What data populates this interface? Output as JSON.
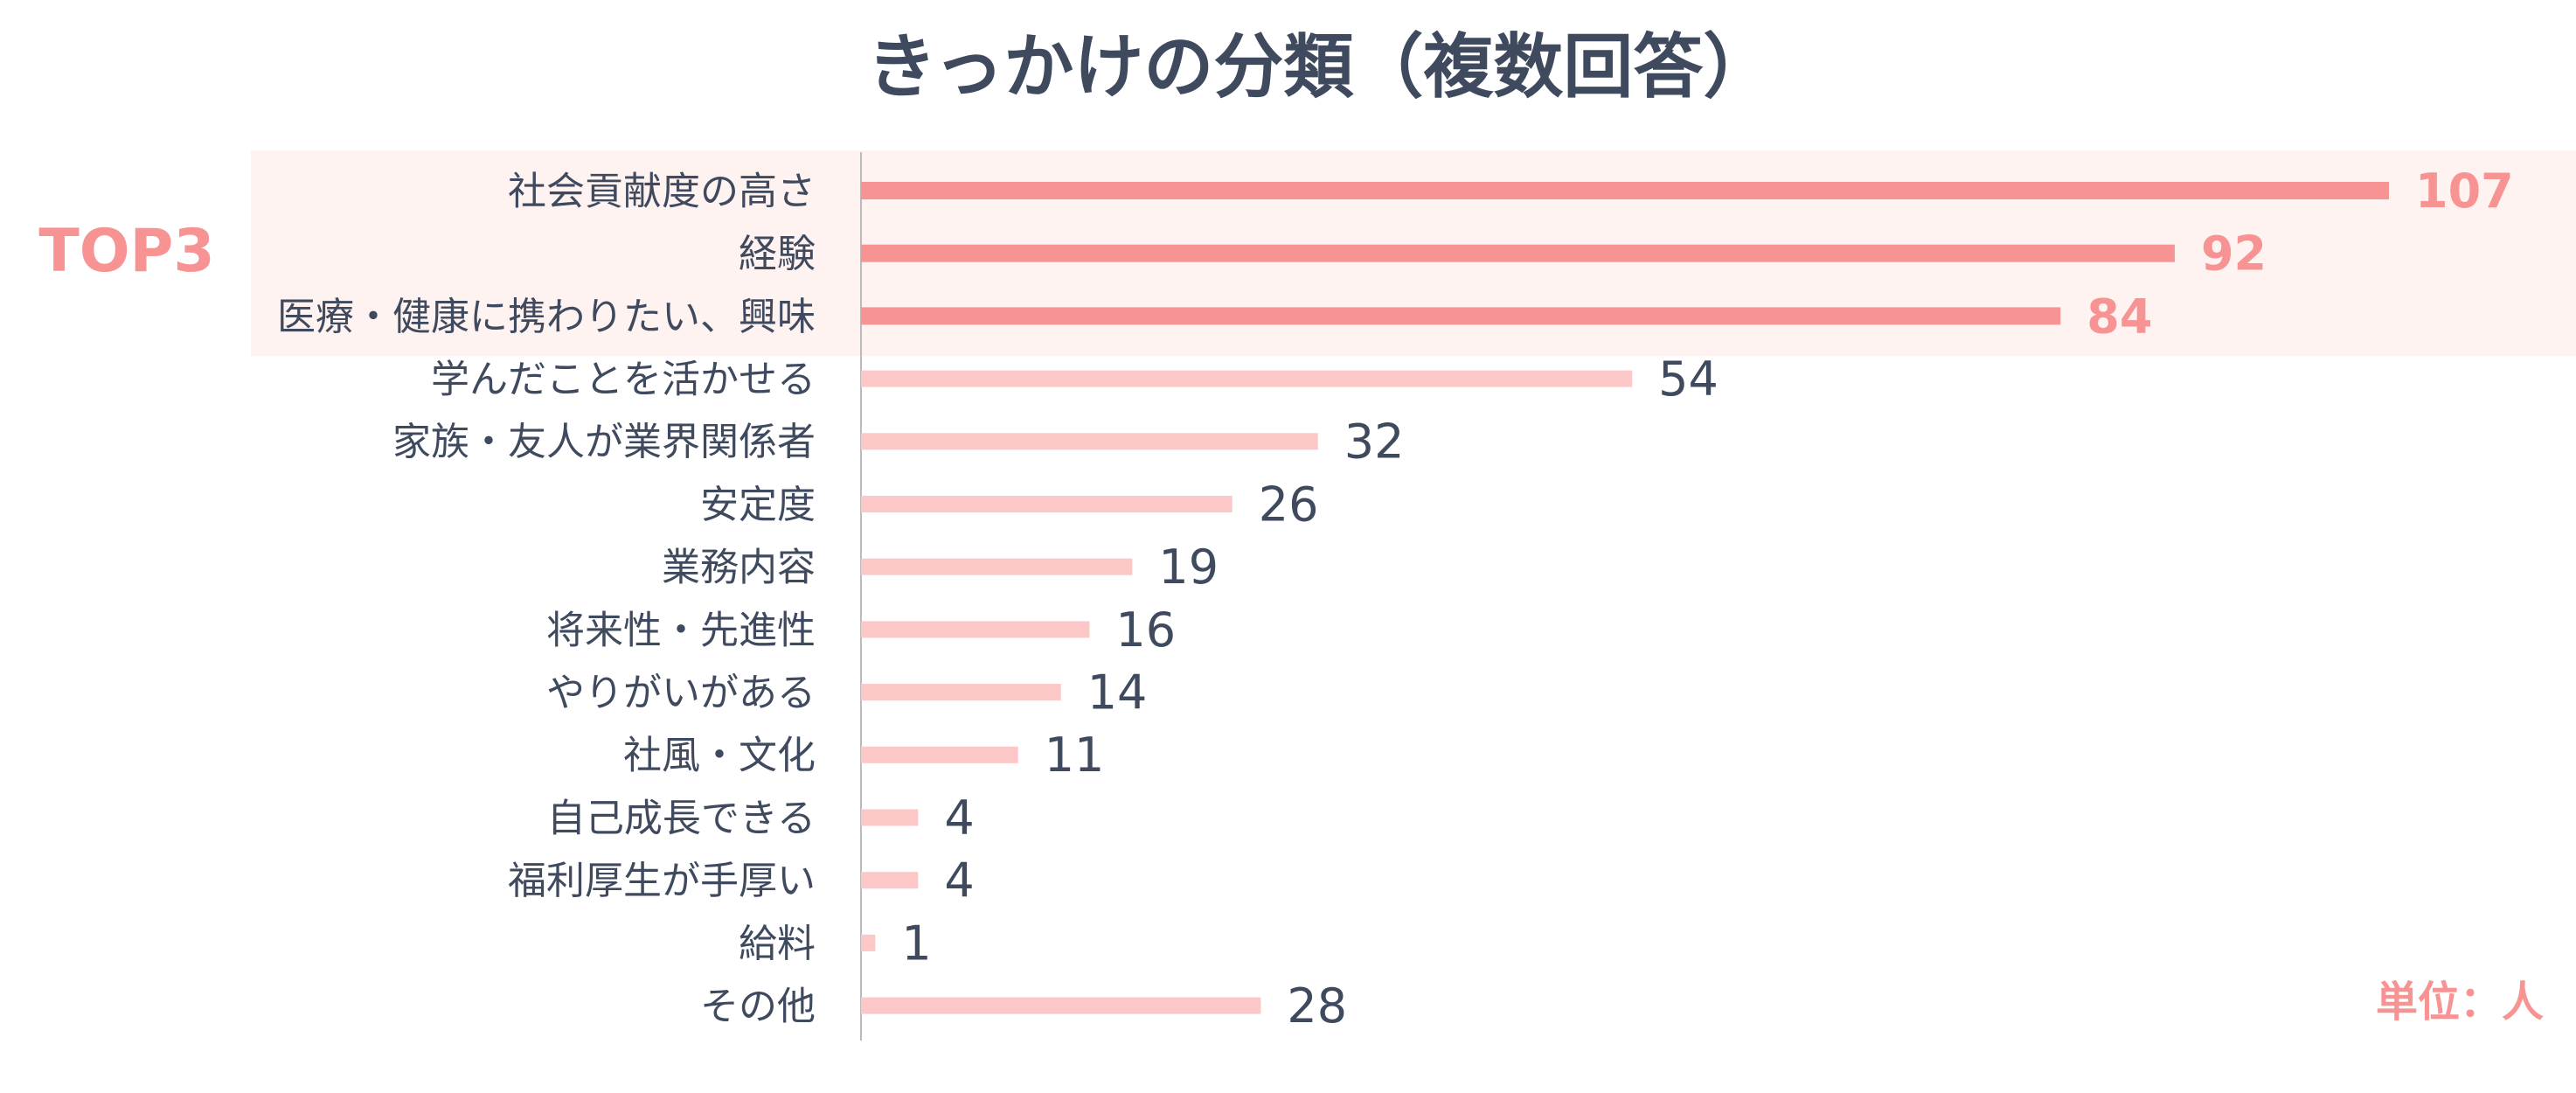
{
  "chart_data": {
    "type": "bar",
    "orientation": "horizontal",
    "title": "きっかけの分類（複数回答）",
    "unit_label": "単位：人",
    "highlight_label": "TOP3",
    "highlight_count": 3,
    "grid": false,
    "categories": [
      "社会貢献度の高さ",
      "経験",
      "医療・健康に携わりたい、興味",
      "学んだことを活かせる",
      "家族・友人が業界関係者",
      "安定度",
      "業務内容",
      "将来性・先進性",
      "やりがいがある",
      "社風・文化",
      "自己成長できる",
      "福利厚生が手厚い",
      "給料",
      "その他"
    ],
    "values": [
      107,
      92,
      84,
      54,
      32,
      26,
      19,
      16,
      14,
      11,
      4,
      4,
      1,
      28
    ],
    "xlim": [
      0,
      120
    ],
    "colors": {
      "title": "#3f4a5e",
      "label": "#3f4a5e",
      "highlight": "#f79393",
      "highlight_band": "#fff3f1",
      "bar": "#fcc7c7",
      "axis": "#bbbbbb"
    }
  }
}
